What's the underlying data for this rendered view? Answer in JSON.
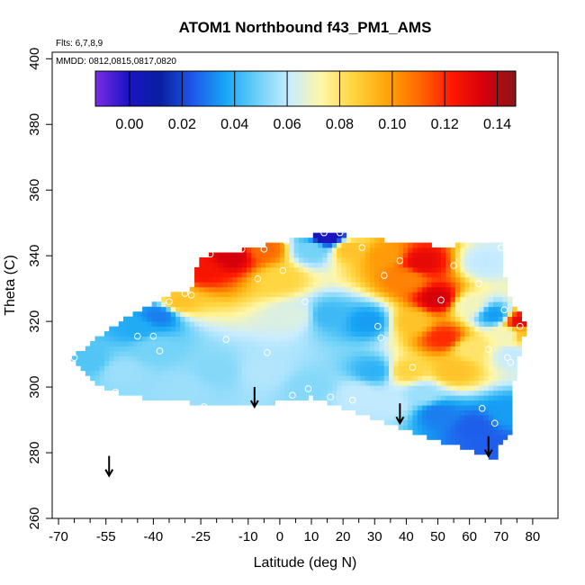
{
  "chart_data": {
    "type": "heatmap",
    "title": "ATOM1 Northbound f43_PM1_AMS",
    "flights_note": "Flts: 6,7,8,9",
    "mmdd_note": "MMDD: 0812,0815,0817,0820",
    "xlabel": "Latitude (deg N)",
    "ylabel": "Theta (C)",
    "xlim": [
      -72,
      88
    ],
    "ylim": [
      260,
      402
    ],
    "x_ticks": [
      -70,
      -55,
      -40,
      -25,
      -10,
      0,
      10,
      20,
      30,
      40,
      50,
      60,
      70,
      80
    ],
    "x_minor_ticks": [
      -65,
      -60,
      -50,
      -45,
      -35,
      -30,
      -20,
      -15,
      -5,
      5,
      15,
      25,
      35,
      45,
      55,
      65,
      75
    ],
    "y_ticks": [
      260,
      280,
      300,
      320,
      340,
      360,
      380,
      400
    ],
    "colorbar": {
      "min": -0.013,
      "max": 0.147,
      "ticks": [
        0.0,
        0.02,
        0.04,
        0.06,
        0.08,
        0.1,
        0.12,
        0.14
      ],
      "tick_labels": [
        "0.00",
        "0.02",
        "0.04",
        "0.06",
        "0.08",
        "0.10",
        "0.12",
        "0.14"
      ],
      "colors": [
        "#7a2de6",
        "#1c13c4",
        "#0a1ea0",
        "#1f57ea",
        "#16a5f5",
        "#6ad0f7",
        "#c9ecff",
        "#fff7a6",
        "#ffd43d",
        "#ffa60a",
        "#ff6a00",
        "#ff1a00",
        "#d6000b",
        "#8b1519"
      ]
    },
    "region": [
      [
        -66,
        309
      ],
      [
        -55,
        317
      ],
      [
        -45,
        323
      ],
      [
        -35,
        328
      ],
      [
        -28,
        330
      ],
      [
        -25,
        340
      ],
      [
        -10,
        342
      ],
      [
        5,
        345
      ],
      [
        15,
        347
      ],
      [
        30,
        345
      ],
      [
        50,
        343
      ],
      [
        70,
        344
      ],
      [
        72,
        328
      ],
      [
        76,
        322
      ],
      [
        78,
        318
      ],
      [
        76,
        310
      ],
      [
        74,
        300
      ],
      [
        73,
        293
      ],
      [
        74,
        287
      ],
      [
        70,
        283
      ],
      [
        68,
        278
      ],
      [
        40,
        287
      ],
      [
        10,
        297
      ],
      [
        -10,
        294
      ],
      [
        -40,
        296
      ],
      [
        -55,
        299
      ],
      [
        -60,
        303
      ]
    ],
    "field_points": [
      {
        "lat": -60,
        "theta": 308,
        "value": 0.045
      },
      {
        "lat": -50,
        "theta": 305,
        "value": 0.055
      },
      {
        "lat": -40,
        "theta": 312,
        "value": 0.05
      },
      {
        "lat": -30,
        "theta": 300,
        "value": 0.055
      },
      {
        "lat": -20,
        "theta": 305,
        "value": 0.052
      },
      {
        "lat": -5,
        "theta": 305,
        "value": 0.058
      },
      {
        "lat": 10,
        "theta": 300,
        "value": 0.052
      },
      {
        "lat": 25,
        "theta": 298,
        "value": 0.06
      },
      {
        "lat": 5,
        "theta": 322,
        "value": 0.065
      },
      {
        "lat": 15,
        "theta": 322,
        "value": 0.042
      },
      {
        "lat": 28,
        "theta": 320,
        "value": 0.035
      },
      {
        "lat": -38,
        "theta": 322,
        "value": 0.03
      },
      {
        "lat": -45,
        "theta": 318,
        "value": 0.038
      },
      {
        "lat": -32,
        "theta": 326,
        "value": 0.09
      },
      {
        "lat": -25,
        "theta": 336,
        "value": 0.125
      },
      {
        "lat": -15,
        "theta": 340,
        "value": 0.135
      },
      {
        "lat": -5,
        "theta": 342,
        "value": 0.11
      },
      {
        "lat": 0,
        "theta": 333,
        "value": 0.085
      },
      {
        "lat": 10,
        "theta": 342,
        "value": 0.05
      },
      {
        "lat": 15,
        "theta": 346,
        "value": 0.0
      },
      {
        "lat": 22,
        "theta": 342,
        "value": 0.09
      },
      {
        "lat": 33,
        "theta": 340,
        "value": 0.1
      },
      {
        "lat": 40,
        "theta": 333,
        "value": 0.105
      },
      {
        "lat": 45,
        "theta": 338,
        "value": 0.13
      },
      {
        "lat": 50,
        "theta": 327,
        "value": 0.135
      },
      {
        "lat": 52,
        "theta": 315,
        "value": 0.12
      },
      {
        "lat": 42,
        "theta": 320,
        "value": 0.09
      },
      {
        "lat": 40,
        "theta": 305,
        "value": 0.085
      },
      {
        "lat": 55,
        "theta": 305,
        "value": 0.09
      },
      {
        "lat": 60,
        "theta": 312,
        "value": 0.08
      },
      {
        "lat": 60,
        "theta": 325,
        "value": 0.07
      },
      {
        "lat": 65,
        "theta": 338,
        "value": 0.06
      },
      {
        "lat": 68,
        "theta": 322,
        "value": 0.035
      },
      {
        "lat": 72,
        "theta": 316,
        "value": 0.07
      },
      {
        "lat": 74,
        "theta": 310,
        "value": 0.06
      },
      {
        "lat": 76,
        "theta": 320,
        "value": 0.13
      },
      {
        "lat": 77,
        "theta": 316,
        "value": 0.09
      },
      {
        "lat": 50,
        "theta": 292,
        "value": 0.03
      },
      {
        "lat": 62,
        "theta": 288,
        "value": 0.025
      },
      {
        "lat": 68,
        "theta": 282,
        "value": 0.025
      },
      {
        "lat": 72,
        "theta": 292,
        "value": 0.035
      },
      {
        "lat": 35,
        "theta": 295,
        "value": 0.06
      },
      {
        "lat": 30,
        "theta": 305,
        "value": 0.04
      },
      {
        "lat": 45,
        "theta": 298,
        "value": 0.055
      }
    ],
    "sample_points": [
      {
        "lat": -65,
        "theta": 309
      },
      {
        "lat": -45,
        "theta": 315.5
      },
      {
        "lat": -40,
        "theta": 315.5
      },
      {
        "lat": -38,
        "theta": 311
      },
      {
        "lat": -52,
        "theta": 298.5
      },
      {
        "lat": -30,
        "theta": 328.5
      },
      {
        "lat": -35,
        "theta": 326
      },
      {
        "lat": -28,
        "theta": 328
      },
      {
        "lat": -22,
        "theta": 340.5
      },
      {
        "lat": -12,
        "theta": 342
      },
      {
        "lat": -7,
        "theta": 333
      },
      {
        "lat": -5,
        "theta": 342
      },
      {
        "lat": -17,
        "theta": 314.5
      },
      {
        "lat": -4,
        "theta": 310.5
      },
      {
        "lat": 1,
        "theta": 335.5
      },
      {
        "lat": 2,
        "theta": 344.5
      },
      {
        "lat": 8,
        "theta": 326
      },
      {
        "lat": 9,
        "theta": 299.5
      },
      {
        "lat": 4,
        "theta": 297.5
      },
      {
        "lat": 16,
        "theta": 297
      },
      {
        "lat": 23,
        "theta": 296
      },
      {
        "lat": 14,
        "theta": 347
      },
      {
        "lat": 19,
        "theta": 347
      },
      {
        "lat": 26,
        "theta": 342.5
      },
      {
        "lat": 33,
        "theta": 334
      },
      {
        "lat": 31,
        "theta": 318.5
      },
      {
        "lat": 38,
        "theta": 338.5
      },
      {
        "lat": 32,
        "theta": 315
      },
      {
        "lat": 42,
        "theta": 306
      },
      {
        "lat": 51,
        "theta": 326.5
      },
      {
        "lat": 55,
        "theta": 337
      },
      {
        "lat": 63,
        "theta": 331.5
      },
      {
        "lat": 64,
        "theta": 293.5
      },
      {
        "lat": 68,
        "theta": 289
      },
      {
        "lat": 66,
        "theta": 311.5
      },
      {
        "lat": 70,
        "theta": 342.5
      },
      {
        "lat": 71,
        "theta": 323.5
      },
      {
        "lat": 72,
        "theta": 309
      },
      {
        "lat": 73,
        "theta": 307.5
      },
      {
        "lat": 76,
        "theta": 318.5
      },
      {
        "lat": -24,
        "theta": 294
      }
    ],
    "arrows": [
      {
        "lat": -54,
        "theta": 273,
        "direction": "down"
      },
      {
        "lat": -8,
        "theta": 294,
        "direction": "down"
      },
      {
        "lat": 38,
        "theta": 289,
        "direction": "down"
      },
      {
        "lat": 66,
        "theta": 279,
        "direction": "down"
      }
    ],
    "grid": false
  }
}
